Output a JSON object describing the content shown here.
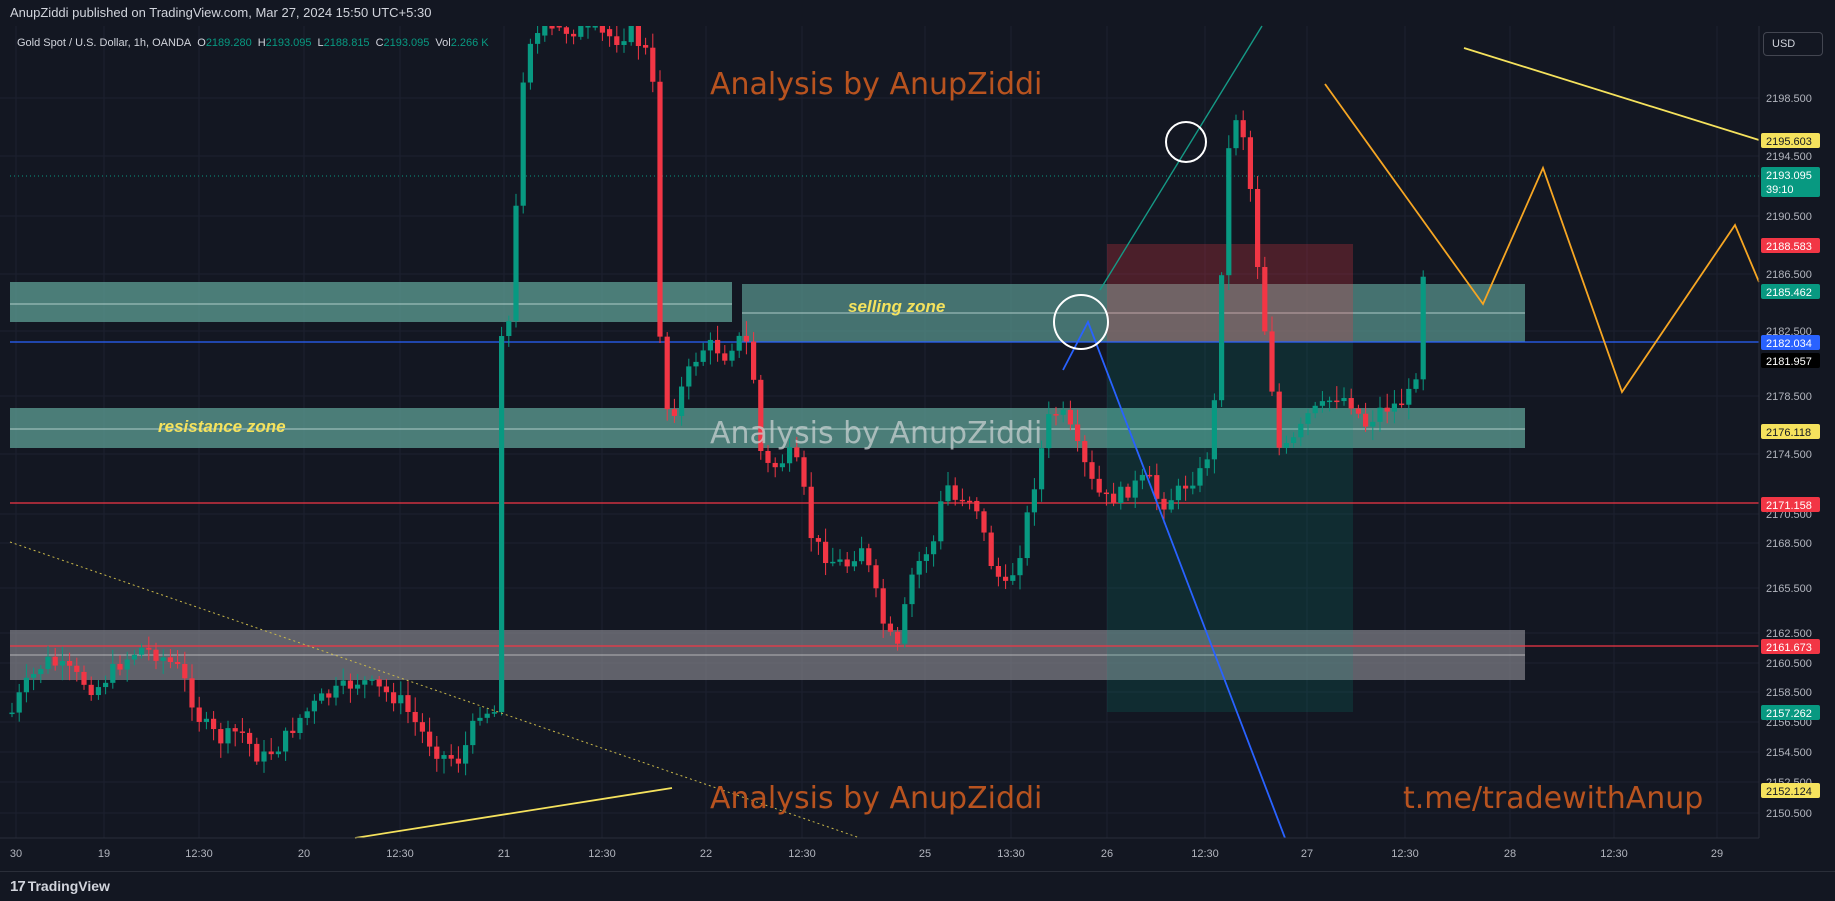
{
  "header": {
    "publisher": "AnupZiddi published on TradingView.com, Mar 27, 2024 15:50 UTC+5:30"
  },
  "legend": {
    "symbol": "Gold Spot / U.S. Dollar, 1h, OANDA",
    "o_label": "O",
    "o_value": "2189.280",
    "h_label": "H",
    "h_value": "2193.095",
    "l_label": "L",
    "l_value": "2188.815",
    "c_label": "C",
    "c_value": "2193.095",
    "vol_label": "Vol",
    "vol_value": "2.266 K"
  },
  "currency": "USD",
  "footer": {
    "brand": "TradingView",
    "logo_glyph": "17"
  },
  "colors": {
    "background": "#131722",
    "up": "#089981",
    "down": "#f23645",
    "zone": "#5b9a91",
    "yellow": "#f5e25d",
    "orange": "#f6a623",
    "blue": "#2962ff",
    "watermark": "#b8531f"
  },
  "watermarks": {
    "top": "Analysis by AnupZiddi",
    "middle": "Analysis by AnupZiddi",
    "bottom": "Analysis by AnupZiddi",
    "link": "t.me/tradewithAnup"
  },
  "annotations": {
    "selling_zone": "selling zone",
    "resistance_zone": "resistance zone"
  },
  "chart_data": {
    "type": "candlestick",
    "symbol": "XAUUSD",
    "interval": "1h",
    "ylim": [
      2148.5,
      2201.5
    ],
    "y_ticks": [
      "2198.500",
      "2194.500",
      "2190.500",
      "2186.500",
      "2182.500",
      "2178.500",
      "2174.500",
      "2170.500",
      "2168.500",
      "2165.500",
      "2162.500",
      "2160.500",
      "2158.500",
      "2156.500",
      "2154.500",
      "2152.500",
      "2150.500"
    ],
    "x_ticks": [
      "30",
      "19",
      "12:30",
      "20",
      "12:30",
      "21",
      "12:30",
      "22",
      "12:30",
      "25",
      "13:30",
      "26",
      "12:30",
      "27",
      "12:30",
      "28",
      "12:30",
      "29"
    ],
    "price_labels": [
      {
        "text": "2195.603",
        "color": "#f5e25d",
        "fg": "#131722"
      },
      {
        "text": "2193.095",
        "sub": "39:10",
        "color": "#089981",
        "fg": "#ffffff"
      },
      {
        "text": "2188.583",
        "color": "#f23645",
        "fg": "#ffffff"
      },
      {
        "text": "2185.462",
        "color": "#089981",
        "fg": "#ffffff"
      },
      {
        "text": "2182.034",
        "color": "#2962ff",
        "fg": "#ffffff"
      },
      {
        "text": "2181.957",
        "color": "#000000",
        "fg": "#ffffff"
      },
      {
        "text": "2176.118",
        "color": "#f5e25d",
        "fg": "#131722"
      },
      {
        "text": "2171.158",
        "color": "#f23645",
        "fg": "#ffffff"
      },
      {
        "text": "2161.673",
        "color": "#f23645",
        "fg": "#ffffff"
      },
      {
        "text": "2157.262",
        "color": "#089981",
        "fg": "#ffffff"
      },
      {
        "text": "2152.124",
        "color": "#f5e25d",
        "fg": "#131722"
      }
    ],
    "horizontal_lines": [
      {
        "price": 2182.034,
        "color": "#2962ff"
      },
      {
        "price": 2171.158,
        "color": "#f23645"
      },
      {
        "price": 2161.673,
        "color": "#f23645"
      }
    ],
    "last_price": 2193.095
  }
}
